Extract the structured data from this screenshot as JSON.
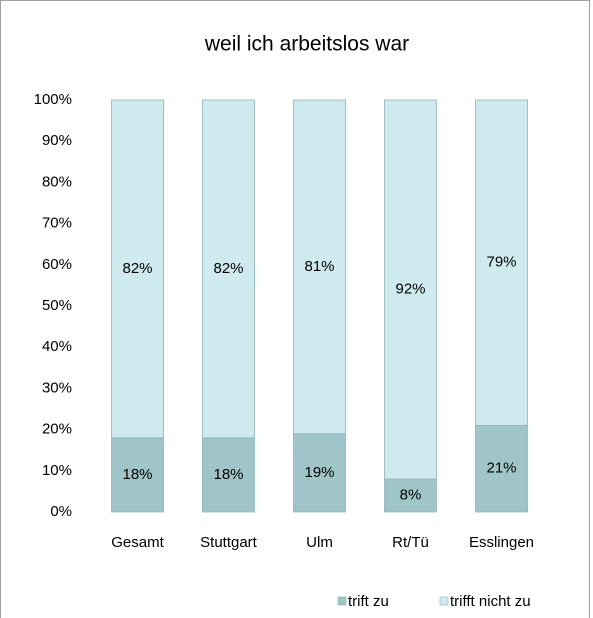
{
  "chart_data": {
    "type": "stacked_bar",
    "title": "weil ich arbeitslos war",
    "categories": [
      "Gesamt",
      "Stuttgart",
      "Ulm",
      "Rt/Tü",
      "Esslingen"
    ],
    "series": [
      {
        "name": "trift zu",
        "color": "#a0c5c9",
        "values": [
          18,
          18,
          19,
          8,
          21
        ],
        "value_labels": [
          "18%",
          "18%",
          "19%",
          "8%",
          "21%"
        ]
      },
      {
        "name": "trifft nicht zu",
        "color": "#cfeaee",
        "values": [
          82,
          82,
          81,
          92,
          79
        ],
        "value_labels": [
          "82%",
          "82%",
          "81%",
          "92%",
          "79%"
        ]
      }
    ],
    "ylim": [
      0,
      100
    ],
    "yticks": [
      {
        "value": 0,
        "label": "0%"
      },
      {
        "value": 10,
        "label": "10%"
      },
      {
        "value": 20,
        "label": "20%"
      },
      {
        "value": 30,
        "label": "30%"
      },
      {
        "value": 40,
        "label": "40%"
      },
      {
        "value": 50,
        "label": "50%"
      },
      {
        "value": 60,
        "label": "60%"
      },
      {
        "value": 70,
        "label": "70%"
      },
      {
        "value": 80,
        "label": "80%"
      },
      {
        "value": 90,
        "label": "90%"
      },
      {
        "value": 100,
        "label": "100%"
      }
    ],
    "legend": "bottom-right"
  }
}
